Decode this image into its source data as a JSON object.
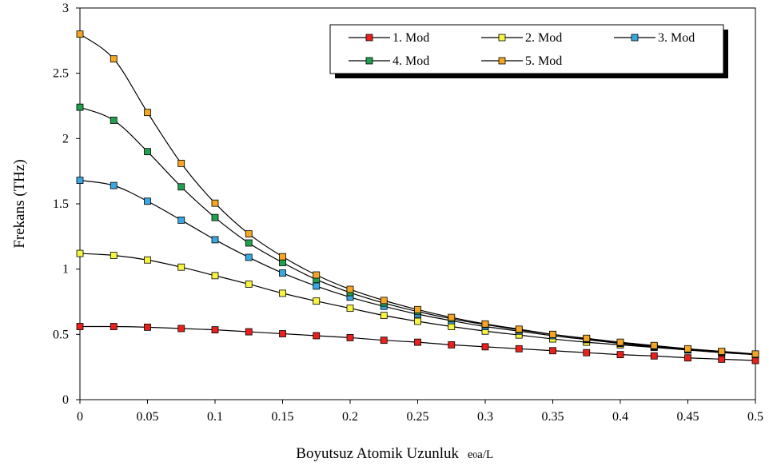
{
  "chart_data": {
    "type": "line",
    "title": "",
    "xlabel": "Boyutsuz Atomik Uzunluk",
    "xlabel_symbol": "e₀a/L",
    "xlabel_symbol_parts": [
      "e",
      "0",
      "a/L"
    ],
    "ylabel": "Frekans (THz)",
    "xlim": [
      0,
      0.5
    ],
    "ylim": [
      0,
      3
    ],
    "x_ticks": [
      "0",
      "0.05",
      "0.1",
      "0.15",
      "0.2",
      "0.25",
      "0.3",
      "0.35",
      "0.4",
      "0.45",
      "0.5"
    ],
    "y_ticks": [
      "0",
      "0.5",
      "1",
      "1.5",
      "2",
      "2.5",
      "3"
    ],
    "grid": false,
    "legend_position": "top-right",
    "x": [
      0,
      0.025,
      0.05,
      0.075,
      0.1,
      0.125,
      0.15,
      0.175,
      0.2,
      0.225,
      0.25,
      0.275,
      0.3,
      0.325,
      0.35,
      0.375,
      0.4,
      0.425,
      0.45,
      0.475,
      0.5
    ],
    "series": [
      {
        "name": "1. Mod",
        "color": "#e8211d",
        "values": [
          0.56,
          0.56,
          0.555,
          0.545,
          0.535,
          0.52,
          0.505,
          0.49,
          0.475,
          0.455,
          0.44,
          0.42,
          0.405,
          0.39,
          0.375,
          0.36,
          0.345,
          0.335,
          0.32,
          0.31,
          0.3
        ]
      },
      {
        "name": "2. Mod",
        "color": "#f5f542",
        "values": [
          1.12,
          1.105,
          1.07,
          1.015,
          0.95,
          0.885,
          0.815,
          0.755,
          0.7,
          0.645,
          0.6,
          0.56,
          0.525,
          0.495,
          0.465,
          0.44,
          0.42,
          0.4,
          0.38,
          0.36,
          0.345
        ]
      },
      {
        "name": "3. Mod",
        "color": "#3aa8e0",
        "values": [
          1.68,
          1.64,
          1.52,
          1.375,
          1.225,
          1.09,
          0.97,
          0.87,
          0.785,
          0.715,
          0.655,
          0.605,
          0.56,
          0.525,
          0.49,
          0.46,
          0.43,
          0.405,
          0.385,
          0.365,
          0.345
        ]
      },
      {
        "name": "4. Mod",
        "color": "#22a050",
        "values": [
          2.24,
          2.14,
          1.9,
          1.63,
          1.395,
          1.2,
          1.05,
          0.92,
          0.82,
          0.74,
          0.675,
          0.62,
          0.575,
          0.535,
          0.5,
          0.465,
          0.435,
          0.41,
          0.385,
          0.365,
          0.345
        ]
      },
      {
        "name": "5. Mod",
        "color": "#f5a623",
        "values": [
          2.8,
          2.61,
          2.2,
          1.81,
          1.505,
          1.27,
          1.095,
          0.955,
          0.845,
          0.76,
          0.69,
          0.63,
          0.58,
          0.54,
          0.5,
          0.47,
          0.44,
          0.415,
          0.39,
          0.37,
          0.35
        ]
      }
    ]
  }
}
